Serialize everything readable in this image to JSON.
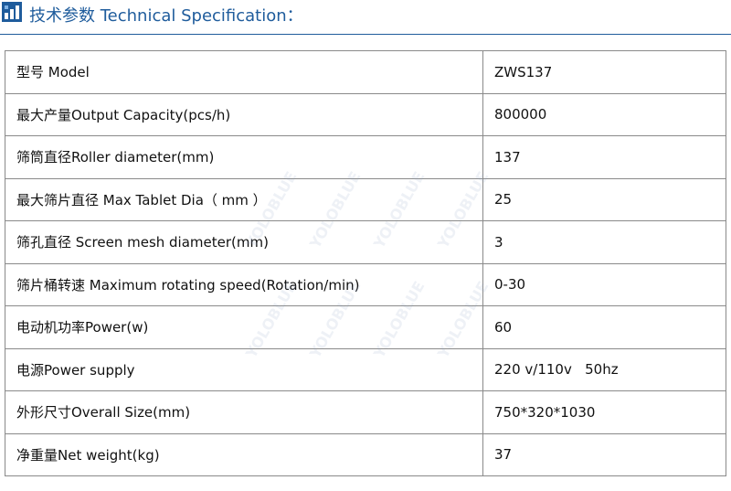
{
  "header": {
    "title": "技术参数 Technical Specification："
  },
  "watermark": "YOLOBLUE",
  "table": {
    "rows": [
      [
        "型号 Model",
        "ZWS137"
      ],
      [
        "最大产量Output Capacity(pcs/h)",
        "800000"
      ],
      [
        "筛筒直径Roller diameter(mm)",
        "137"
      ],
      [
        "最大筛片直径 Max Tablet Dia（ mm ）",
        "25"
      ],
      [
        "筛孔直径 Screen mesh diameter(mm)",
        "3"
      ],
      [
        "筛片桶转速 Maximum rotating speed(Rotation/min)",
        "0-30"
      ],
      [
        "电动机功率Power(w)",
        "60"
      ],
      [
        "电源Power supply",
        "220 v/110v   50hz"
      ],
      [
        "外形尺寸Overall Size(mm)",
        "750*320*1030"
      ],
      [
        "净重量Net weight(kg)",
        "37"
      ]
    ]
  }
}
